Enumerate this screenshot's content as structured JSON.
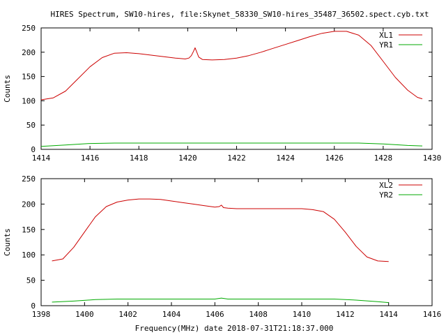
{
  "title": "HIRES Spectrum, SW10-hires, file:Skynet_58330_SW10-hires_35487_36502.spect.cyb.txt",
  "xlabel": "Frequency(MHz) date 2018-07-31T21:18:37.000",
  "colors": {
    "xl": "#cc0000",
    "yr": "#00aa00",
    "axis": "#000000"
  },
  "chart_data": [
    {
      "type": "line",
      "ylabel": "Counts",
      "xlim": [
        1414,
        1430
      ],
      "ylim": [
        0,
        250
      ],
      "xticks": [
        1414,
        1416,
        1418,
        1420,
        1422,
        1424,
        1426,
        1428,
        1430
      ],
      "yticks": [
        0,
        50,
        100,
        150,
        200,
        250
      ],
      "legend": "top-right",
      "grid": false,
      "series": [
        {
          "name": "XL1",
          "color": "#cc0000",
          "x": [
            1414.0,
            1414.5,
            1415.0,
            1415.5,
            1416.0,
            1416.5,
            1417.0,
            1417.5,
            1418.0,
            1418.5,
            1419.0,
            1419.5,
            1419.9,
            1420.05,
            1420.15,
            1420.25,
            1420.3,
            1420.35,
            1420.45,
            1420.6,
            1421.0,
            1421.5,
            1422.0,
            1422.5,
            1423.0,
            1423.5,
            1424.0,
            1424.5,
            1425.0,
            1425.5,
            1426.0,
            1426.5,
            1427.0,
            1427.5,
            1428.0,
            1428.5,
            1429.0,
            1429.4,
            1429.6
          ],
          "values": [
            102,
            106,
            120,
            145,
            170,
            189,
            198,
            199,
            197,
            194,
            191,
            188,
            186,
            188,
            193,
            203,
            209,
            203,
            190,
            185,
            184,
            185,
            188,
            193,
            200,
            208,
            216,
            224,
            232,
            239,
            243,
            243,
            235,
            214,
            181,
            148,
            122,
            107,
            104
          ]
        },
        {
          "name": "YR1",
          "color": "#00aa00",
          "x": [
            1414.0,
            1415.0,
            1416.0,
            1417.0,
            1418.0,
            1420.0,
            1422.0,
            1424.0,
            1426.0,
            1427.0,
            1428.0,
            1429.0,
            1429.6
          ],
          "values": [
            6,
            9,
            12,
            13,
            13,
            13,
            13,
            13,
            13,
            13,
            11,
            8,
            7
          ]
        }
      ]
    },
    {
      "type": "line",
      "ylabel": "Counts",
      "xlim": [
        1398,
        1416
      ],
      "ylim": [
        0,
        250
      ],
      "xticks": [
        1398,
        1400,
        1402,
        1404,
        1406,
        1408,
        1410,
        1412,
        1414,
        1416
      ],
      "yticks": [
        0,
        50,
        100,
        150,
        200,
        250
      ],
      "legend": "top-right",
      "grid": false,
      "series": [
        {
          "name": "XL2",
          "color": "#cc0000",
          "x": [
            1398.5,
            1399.0,
            1399.5,
            1400.0,
            1400.5,
            1401.0,
            1401.5,
            1402.0,
            1402.5,
            1403.0,
            1403.5,
            1404.0,
            1404.5,
            1405.0,
            1405.5,
            1406.0,
            1406.2,
            1406.3,
            1406.4,
            1406.6,
            1407.0,
            1407.5,
            1408.0,
            1409.0,
            1410.0,
            1410.5,
            1411.0,
            1411.5,
            1412.0,
            1412.5,
            1413.0,
            1413.5,
            1414.0
          ],
          "values": [
            88,
            92,
            115,
            145,
            175,
            195,
            204,
            208,
            210,
            210,
            209,
            206,
            203,
            200,
            197,
            194,
            195,
            198,
            193,
            192,
            191,
            191,
            191,
            191,
            191,
            189,
            185,
            170,
            145,
            117,
            96,
            88,
            87
          ]
        },
        {
          "name": "YR2",
          "color": "#00aa00",
          "x": [
            1398.5,
            1399.5,
            1400.5,
            1401.5,
            1402.5,
            1404.0,
            1406.0,
            1406.3,
            1406.6,
            1408.0,
            1410.0,
            1411.5,
            1412.5,
            1413.5,
            1414.0
          ],
          "values": [
            7,
            9,
            12,
            13,
            13,
            13,
            13,
            15,
            13,
            13,
            13,
            13,
            11,
            8,
            6
          ]
        }
      ]
    }
  ]
}
